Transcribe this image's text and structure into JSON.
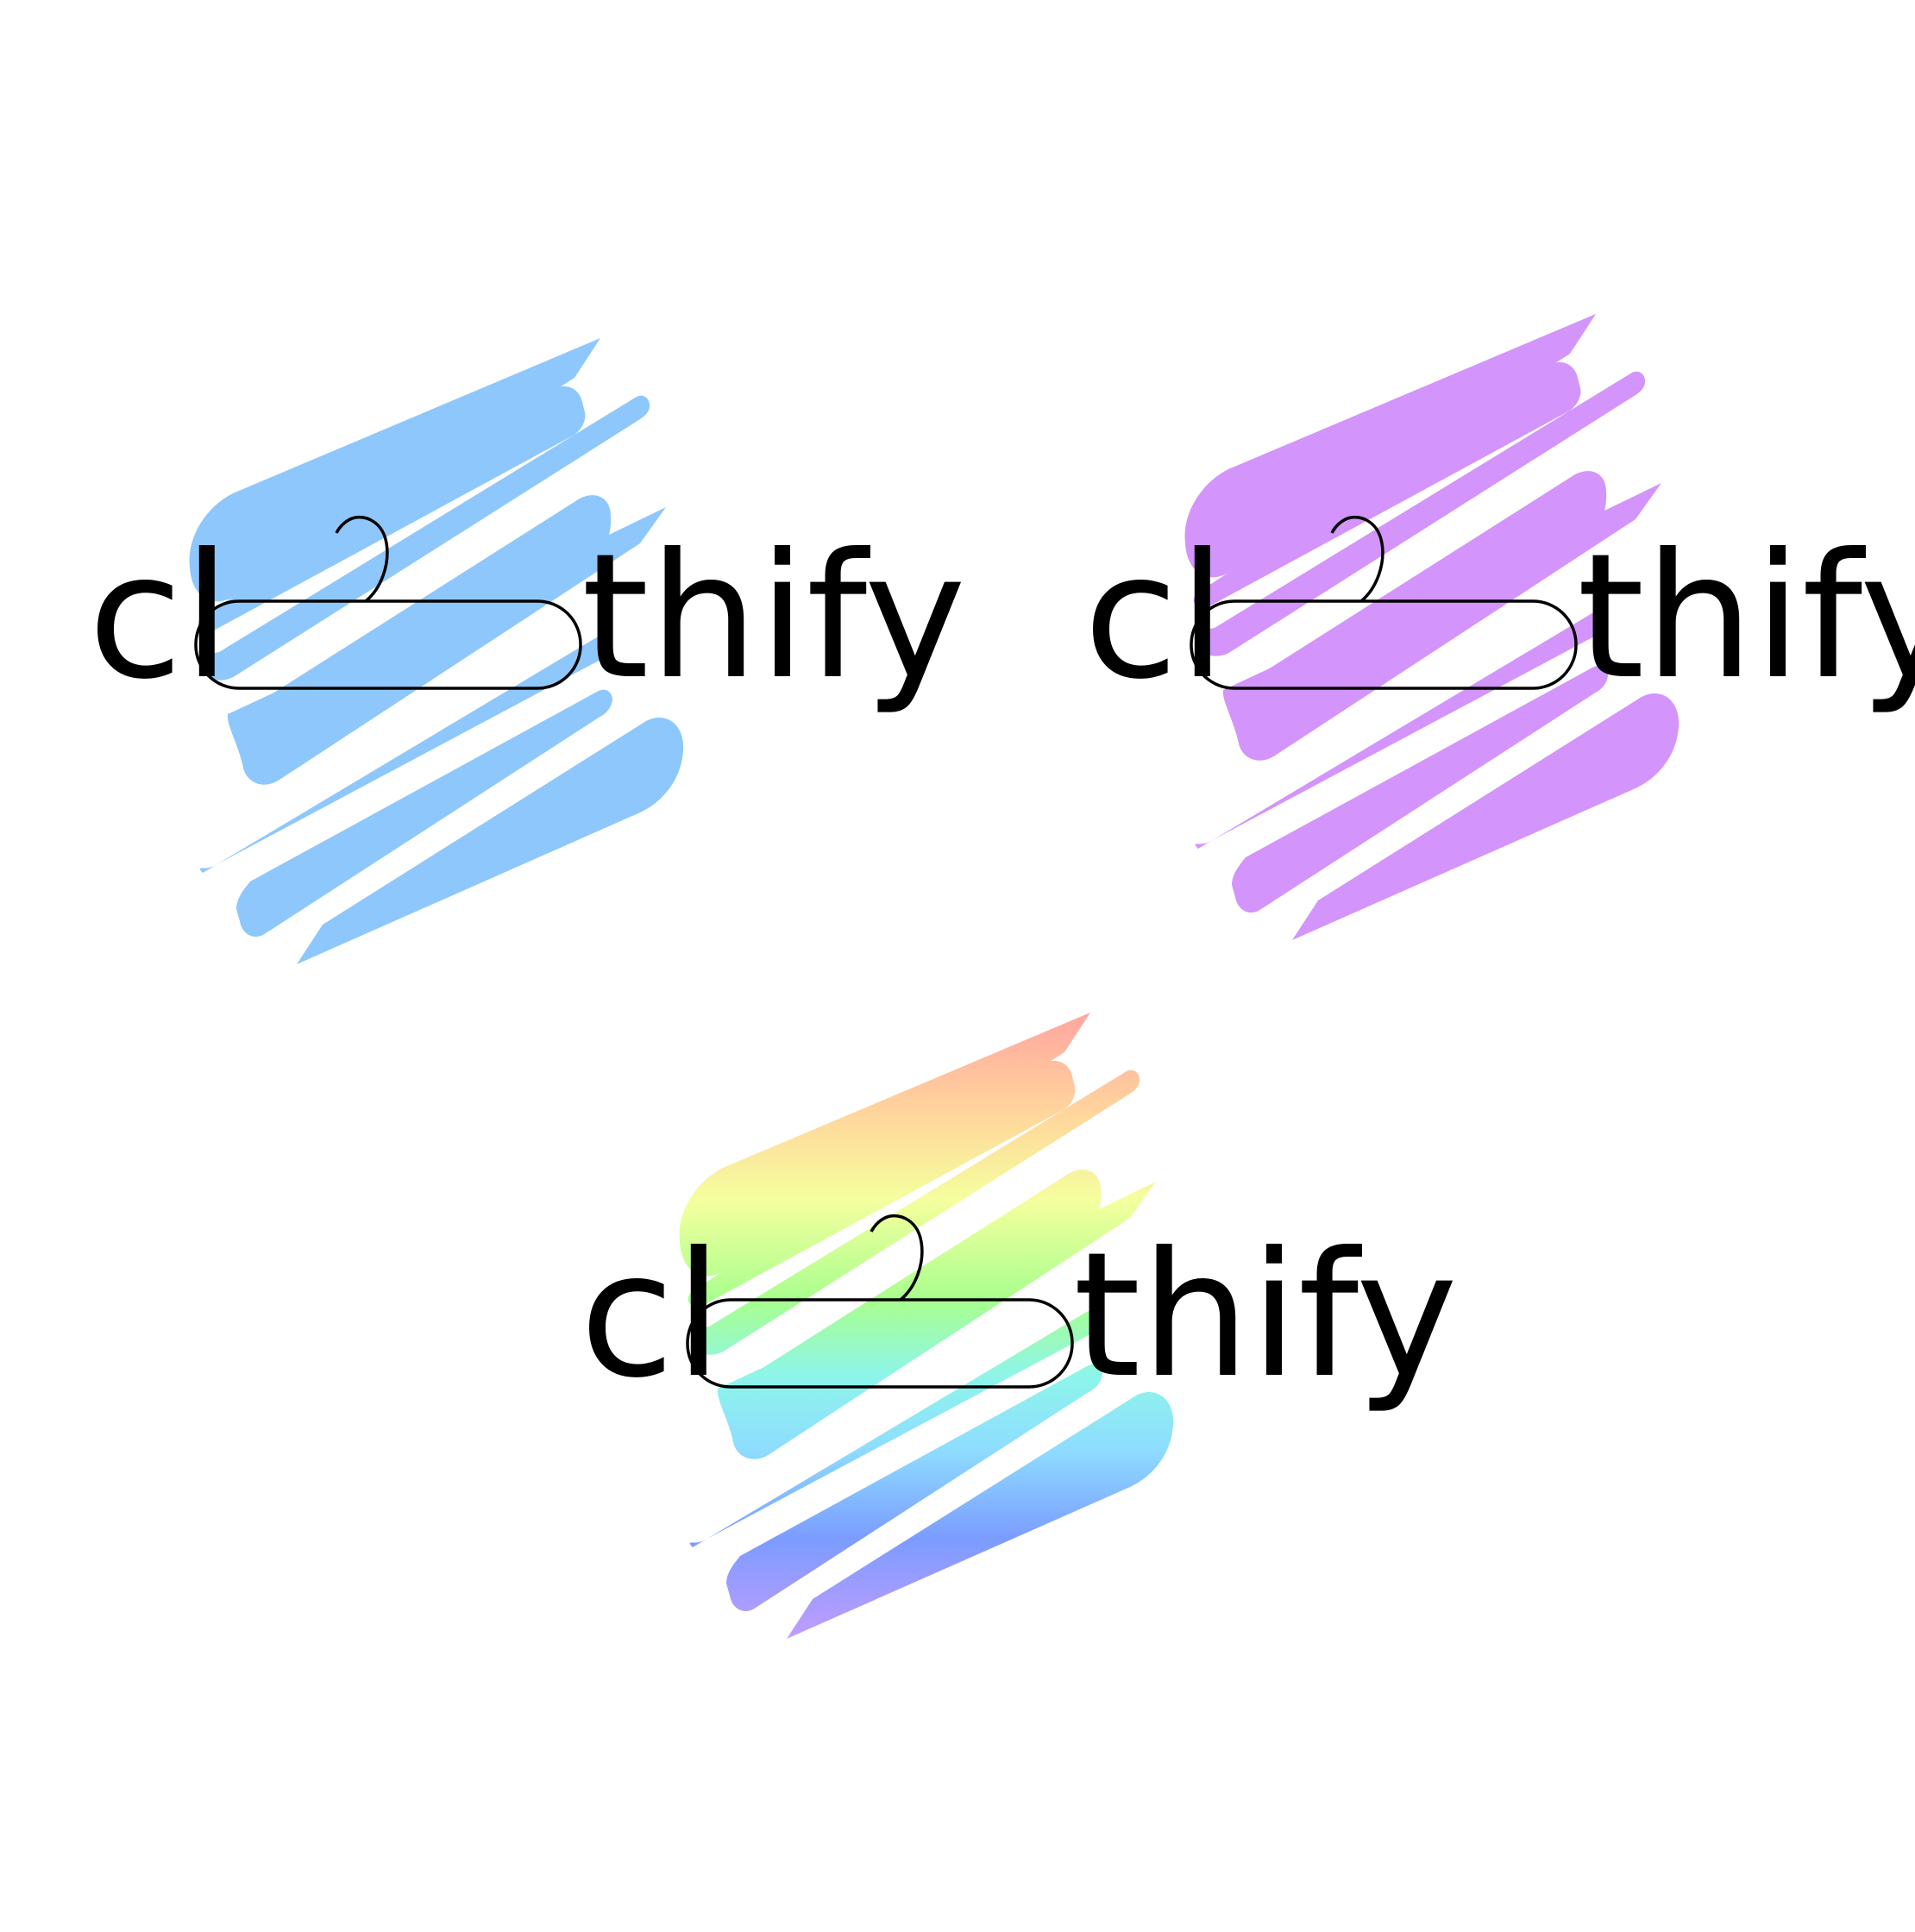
{
  "logos": [
    {
      "name": "blue",
      "left_text": "cl",
      "right_text": "thify",
      "fill": "#8ec7fb"
    },
    {
      "name": "purple",
      "left_text": "cl",
      "right_text": "thify",
      "fill": "#d394fb"
    },
    {
      "name": "rainbow",
      "left_text": "cl",
      "right_text": "thify",
      "gradient": [
        "#ffa5a0",
        "#ffd59c",
        "#f5ff9e",
        "#a8ff8e",
        "#8ef5ea",
        "#8edcff",
        "#7b9cff",
        "#c29cff"
      ]
    }
  ]
}
